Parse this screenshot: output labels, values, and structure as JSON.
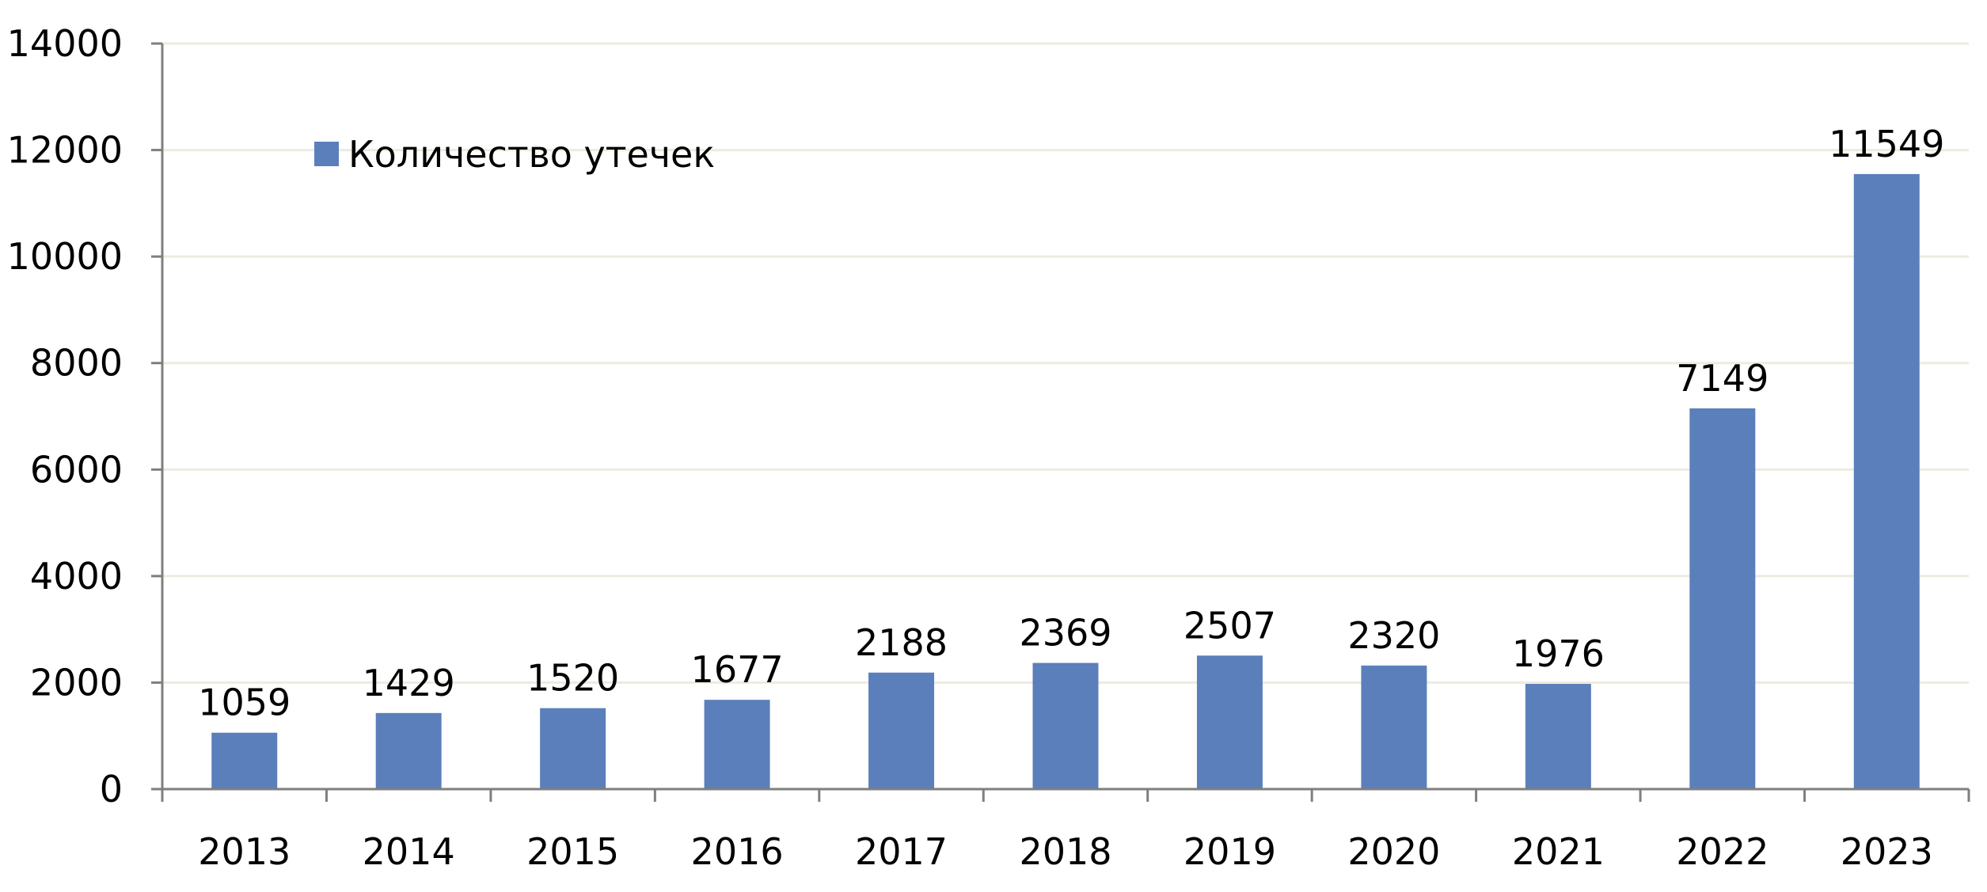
{
  "chart_data": {
    "type": "bar",
    "title": "",
    "xlabel": "",
    "ylabel": "",
    "categories": [
      "2013",
      "2014",
      "2015",
      "2016",
      "2017",
      "2018",
      "2019",
      "2020",
      "2021",
      "2022",
      "2023"
    ],
    "series": [
      {
        "name": "Количество утечек",
        "values": [
          1059,
          1429,
          1520,
          1677,
          2188,
          2369,
          2507,
          2320,
          1976,
          7149,
          11549
        ],
        "color": "#5B7FBA"
      }
    ],
    "ylim": [
      0,
      14000
    ],
    "yticks": [
      0,
      2000,
      4000,
      6000,
      8000,
      10000,
      12000,
      14000
    ],
    "grid": true,
    "gridColor": "#EDEBDF",
    "axisColor": "#7F7F7F",
    "legend": "top-left",
    "data_labels": true
  }
}
